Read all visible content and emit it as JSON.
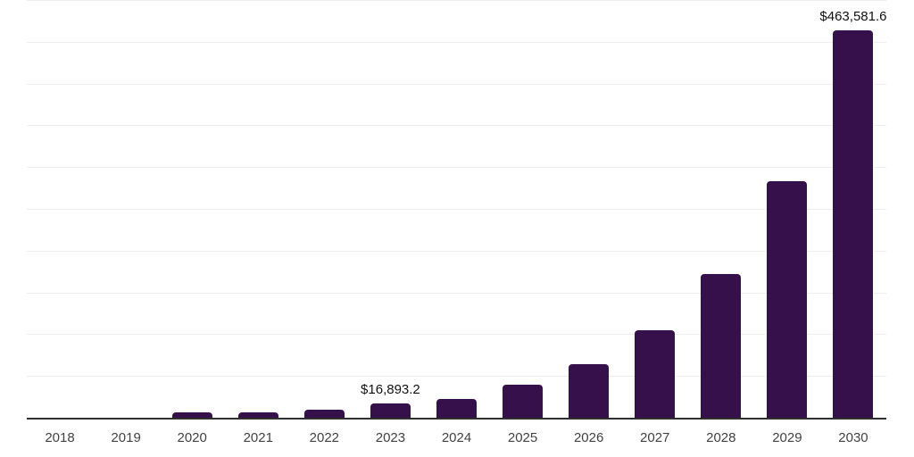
{
  "chart_data": {
    "type": "bar",
    "title": "",
    "categories": [
      "2018",
      "2019",
      "2020",
      "2021",
      "2022",
      "2023",
      "2024",
      "2025",
      "2026",
      "2027",
      "2028",
      "2029",
      "2030"
    ],
    "values": [
      200,
      500,
      6700,
      6500,
      9800,
      16893.2,
      22500,
      39200,
      64000,
      104500,
      172400,
      282700,
      463581.6
    ],
    "data_labels": {
      "2023": "$16,893.2",
      "2030": "$463,581.6"
    },
    "xlabel": "",
    "ylabel": "",
    "ylim": [
      0,
      500000
    ],
    "gridline_step": 50000,
    "grid": true,
    "legend": false,
    "y_axis_tick_labels_visible": false,
    "colors": {
      "bar": "#35104a",
      "gridline": "#eeeeee",
      "axis_line": "#2f2f2f",
      "tick_label": "#424242",
      "data_label": "#111111",
      "background": "#ffffff"
    }
  }
}
